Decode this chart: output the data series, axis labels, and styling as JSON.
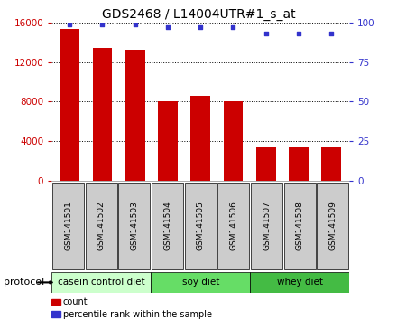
{
  "title": "GDS2468 / L14004UTR#1_s_at",
  "categories": [
    "GSM141501",
    "GSM141502",
    "GSM141503",
    "GSM141504",
    "GSM141505",
    "GSM141506",
    "GSM141507",
    "GSM141508",
    "GSM141509"
  ],
  "counts": [
    15300,
    13400,
    13200,
    8000,
    8600,
    8050,
    3400,
    3400,
    3400
  ],
  "percentile_ranks": [
    99,
    99,
    99,
    97,
    97,
    97,
    93,
    93,
    93
  ],
  "bar_color": "#cc0000",
  "dot_color": "#3333cc",
  "ylim_left": [
    0,
    16000
  ],
  "ylim_right": [
    0,
    100
  ],
  "yticks_left": [
    0,
    4000,
    8000,
    12000,
    16000
  ],
  "yticks_right": [
    0,
    25,
    50,
    75,
    100
  ],
  "groups": [
    {
      "label": "casein control diet",
      "start": 0,
      "end": 3,
      "color": "#ccffcc"
    },
    {
      "label": "soy diet",
      "start": 3,
      "end": 6,
      "color": "#66dd66"
    },
    {
      "label": "whey diet",
      "start": 6,
      "end": 9,
      "color": "#44cc44"
    }
  ],
  "protocol_label": "protocol",
  "legend_items": [
    {
      "label": "count",
      "color": "#cc0000"
    },
    {
      "label": "percentile rank within the sample",
      "color": "#3333cc"
    }
  ],
  "background_color": "#ffffff",
  "tick_bg_color": "#cccccc",
  "title_fontsize": 10,
  "tick_fontsize": 7.5,
  "cat_fontsize": 6.5,
  "legend_fontsize": 7,
  "prot_fontsize": 7.5,
  "bar_xlim": [
    -0.55,
    8.55
  ],
  "bar_width": 0.6
}
